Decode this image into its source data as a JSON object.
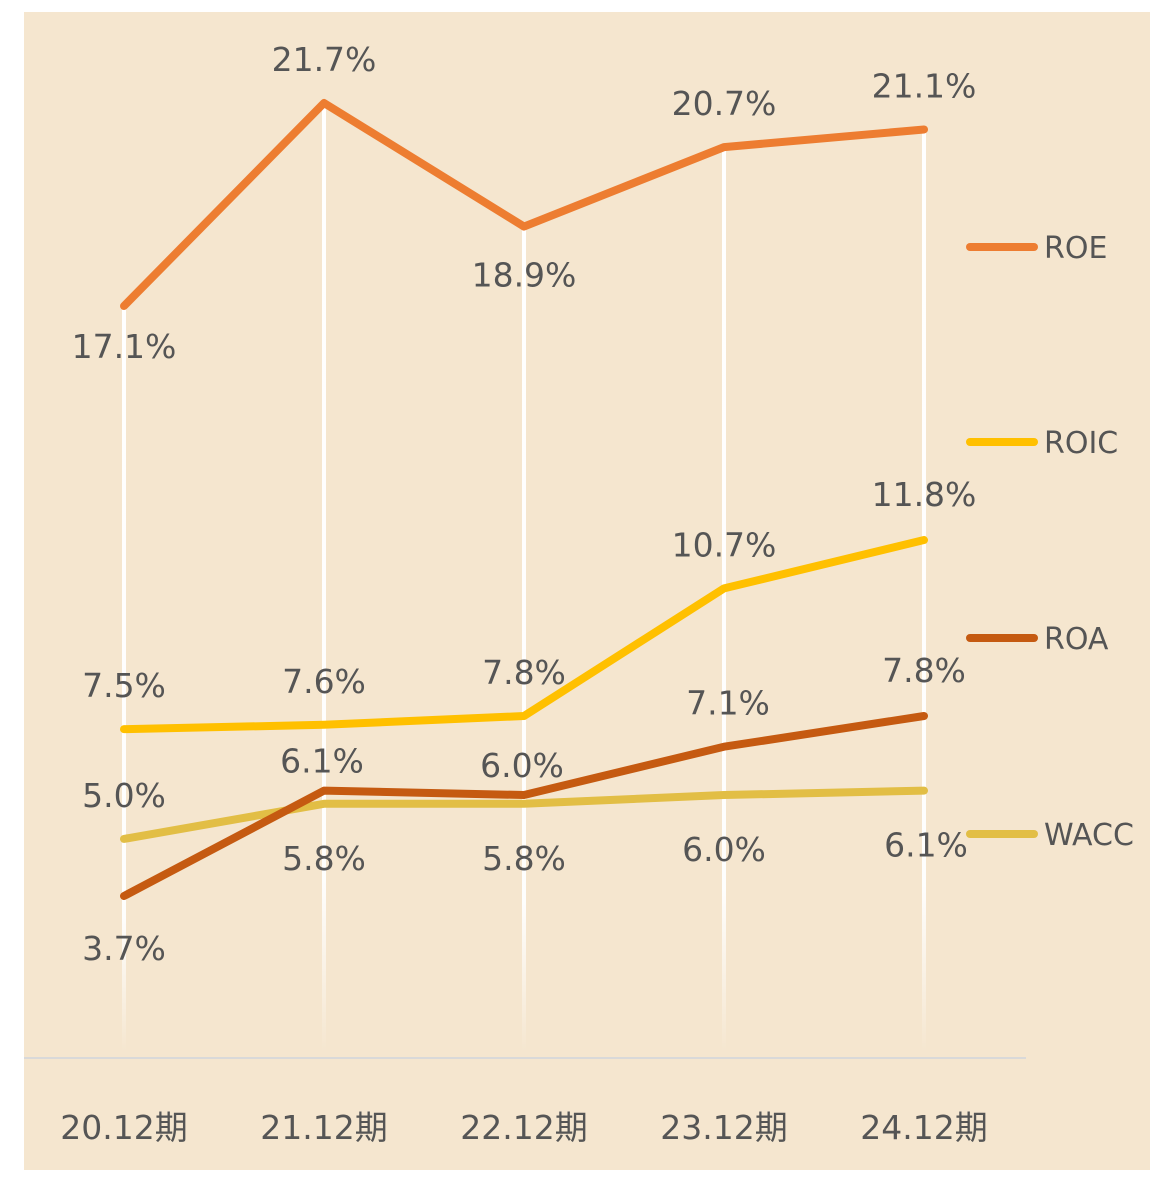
{
  "chart_data": {
    "type": "line",
    "categories": [
      "20.12期",
      "21.12期",
      "22.12期",
      "23.12期",
      "24.12期"
    ],
    "series": [
      {
        "name": "ROE",
        "color": "#ed7d31",
        "values": [
          17.1,
          21.7,
          18.9,
          20.7,
          21.1
        ],
        "labels": [
          "17.1%",
          "21.7%",
          "18.9%",
          "20.7%",
          "21.1%"
        ]
      },
      {
        "name": "ROIC",
        "color": "#ffc000",
        "values": [
          7.5,
          7.6,
          7.8,
          10.7,
          11.8
        ],
        "labels": [
          "7.5%",
          "7.6%",
          "7.8%",
          "10.7%",
          "11.8%"
        ]
      },
      {
        "name": "ROA",
        "color": "#c55a11",
        "values": [
          3.7,
          6.1,
          6.0,
          7.1,
          7.8
        ],
        "labels": [
          "3.7%",
          "6.1%",
          "6.0%",
          "7.1%",
          "7.8%"
        ]
      },
      {
        "name": "WACC",
        "color": "#e2be45",
        "values": [
          5.0,
          5.8,
          5.8,
          6.0,
          6.1
        ],
        "labels": [
          "5.0%",
          "5.8%",
          "5.8%",
          "6.0%",
          "6.1%"
        ]
      }
    ],
    "title": "",
    "xlabel": "",
    "ylabel": "",
    "grid": "vertical drop lines",
    "legend_position": "right"
  }
}
